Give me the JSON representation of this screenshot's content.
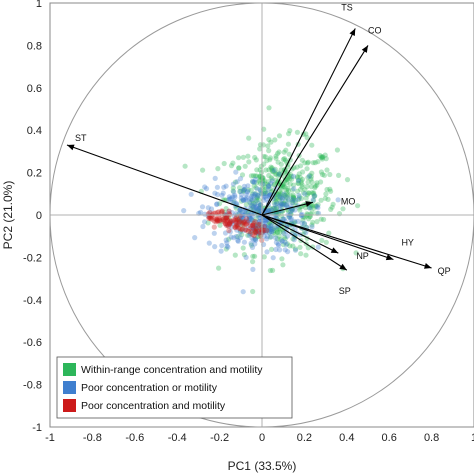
{
  "chart_data": {
    "type": "scatter",
    "title": "",
    "xlabel": "PC1 (33.5%)",
    "ylabel": "PC2 (21.0%)",
    "xlim": [
      -1,
      1
    ],
    "ylim": [
      -1,
      1
    ],
    "x_ticks": [
      -1,
      -0.8,
      -0.6,
      -0.4,
      -0.2,
      0,
      0.2,
      0.4,
      0.6,
      0.8,
      1
    ],
    "y_ticks": [
      -1,
      -0.8,
      -0.6,
      -0.4,
      -0.2,
      0,
      0.2,
      0.4,
      0.6,
      0.8,
      1
    ],
    "grid": false,
    "unit_circle": true,
    "loadings": [
      {
        "name": "TS",
        "x": 0.44,
        "y": 0.88
      },
      {
        "name": "CO",
        "x": 0.5,
        "y": 0.8
      },
      {
        "name": "ST",
        "x": -0.92,
        "y": 0.33
      },
      {
        "name": "MO",
        "x": 0.24,
        "y": 0.06
      },
      {
        "name": "HY",
        "x": 0.62,
        "y": -0.21
      },
      {
        "name": "QP",
        "x": 0.8,
        "y": -0.25
      },
      {
        "name": "NP",
        "x": 0.36,
        "y": -0.18
      },
      {
        "name": "SP",
        "x": 0.4,
        "y": -0.26
      }
    ],
    "series": [
      {
        "name": "Within-range concentration and motility",
        "color": "#2db65a",
        "center": [
          0.09,
          0.08
        ],
        "spread": [
          0.13,
          0.13
        ],
        "count": 520
      },
      {
        "name": "Poor concentration or motility",
        "color": "#3f7fcf",
        "center": [
          -0.02,
          0.0
        ],
        "spread": [
          0.12,
          0.09
        ],
        "count": 360
      },
      {
        "name": "Poor concentration and motility",
        "color": "#cc1a1a",
        "center": [
          -0.12,
          -0.04
        ],
        "spread": [
          0.06,
          0.02
        ],
        "count": 120
      }
    ],
    "legend_position": "bottom-left"
  }
}
